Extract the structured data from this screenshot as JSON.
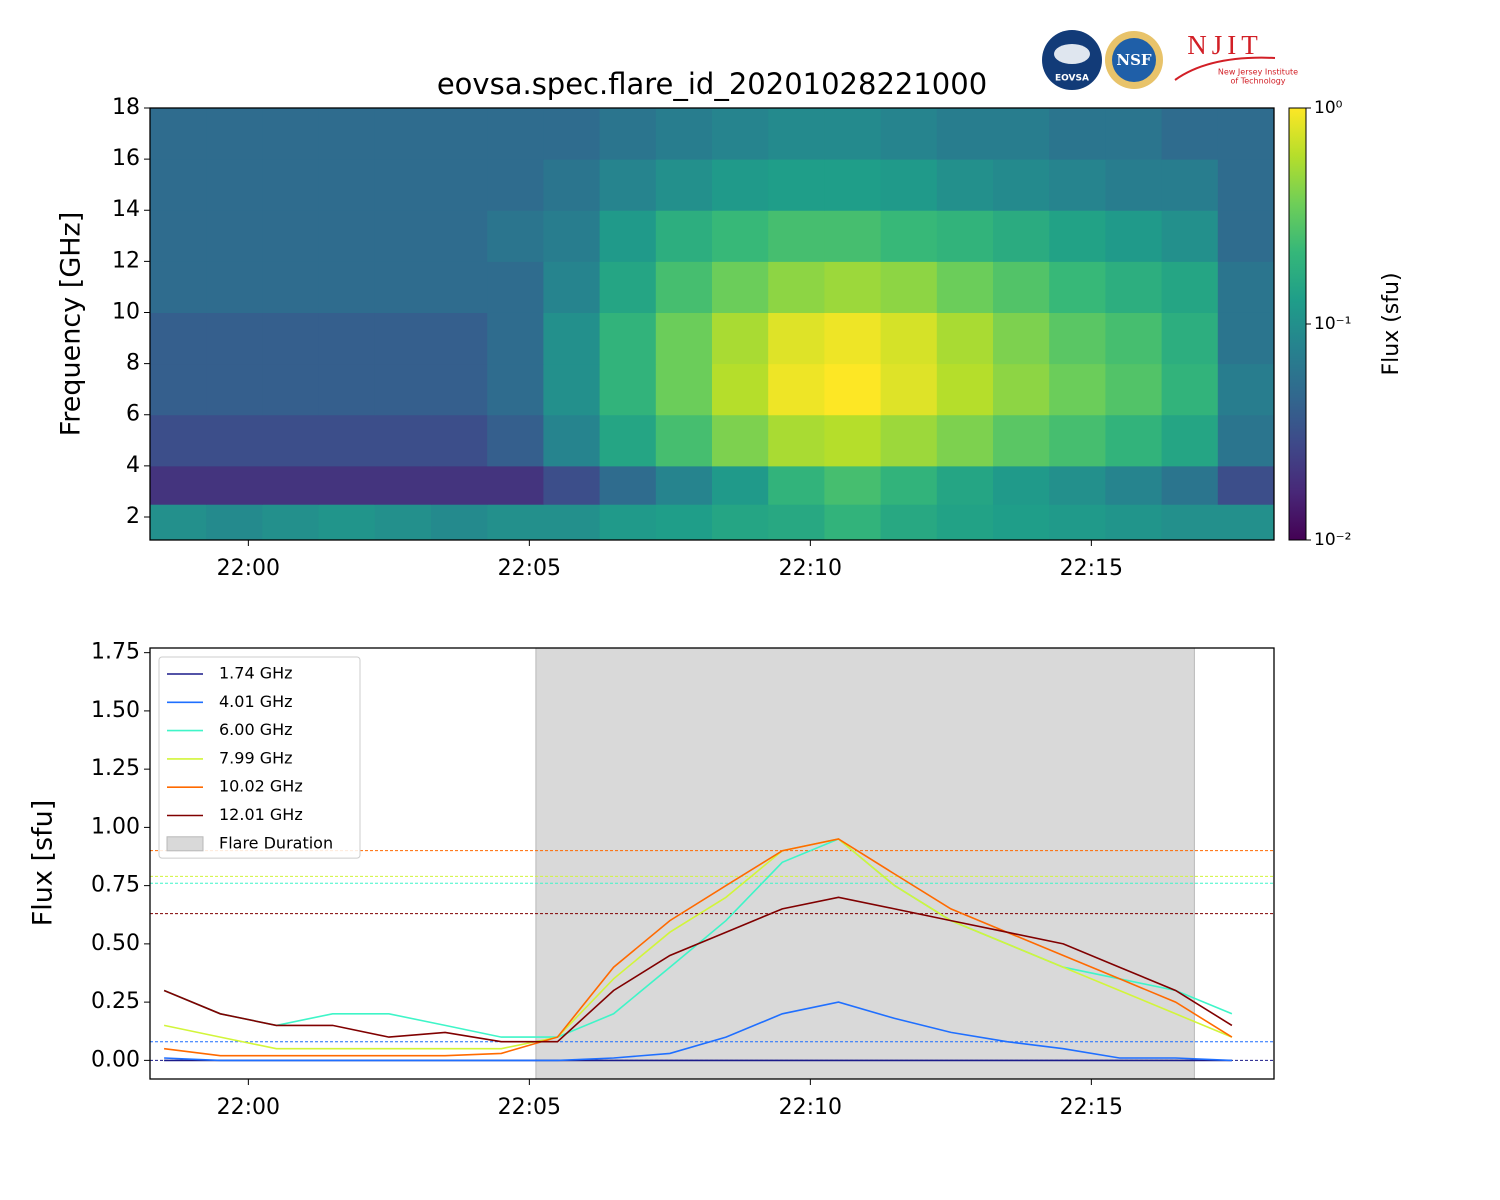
{
  "logos": [
    "EOVSA",
    "NSF",
    "NJIT",
    "New Jersey Institute",
    "of Technology"
  ],
  "chart_data": [
    {
      "type": "heatmap",
      "title": "eovsa.spec.flare_id_20201028221000",
      "ylabel": "Frequency [GHz]",
      "xlim": [
        "21:58:15",
        "22:18:15"
      ],
      "xticks": [
        "22:00",
        "22:05",
        "22:10",
        "22:15"
      ],
      "ylim": [
        1.1,
        18
      ],
      "yticks": [
        2,
        4,
        6,
        8,
        10,
        12,
        14,
        16,
        18
      ],
      "x": [
        "21:58:15",
        "21:59:15",
        "22:00:15",
        "22:01:15",
        "22:02:15",
        "22:03:15",
        "22:04:15",
        "22:05:15",
        "22:06:15",
        "22:07:15",
        "22:08:15",
        "22:09:15",
        "22:10:15",
        "22:11:15",
        "22:12:15",
        "22:13:15",
        "22:14:15",
        "22:15:15",
        "22:16:15",
        "22:17:15",
        "22:18:15"
      ],
      "y": [
        1.1,
        2.5,
        4,
        6,
        8,
        10,
        12,
        14,
        16,
        18
      ],
      "z": [
        [
          0.1,
          0.09,
          0.1,
          0.11,
          0.1,
          0.09,
          0.1,
          0.1,
          0.12,
          0.13,
          0.15,
          0.16,
          0.2,
          0.16,
          0.14,
          0.13,
          0.12,
          0.11,
          0.1,
          0.1
        ],
        [
          0.02,
          0.02,
          0.02,
          0.02,
          0.02,
          0.02,
          0.02,
          0.03,
          0.05,
          0.08,
          0.12,
          0.2,
          0.25,
          0.2,
          0.15,
          0.12,
          0.1,
          0.08,
          0.06,
          0.03
        ],
        [
          0.03,
          0.03,
          0.03,
          0.03,
          0.03,
          0.03,
          0.04,
          0.08,
          0.15,
          0.25,
          0.4,
          0.55,
          0.6,
          0.5,
          0.4,
          0.3,
          0.25,
          0.2,
          0.15,
          0.06
        ],
        [
          0.04,
          0.04,
          0.04,
          0.04,
          0.04,
          0.04,
          0.05,
          0.1,
          0.2,
          0.35,
          0.6,
          0.9,
          1,
          0.8,
          0.6,
          0.45,
          0.35,
          0.28,
          0.2,
          0.07
        ],
        [
          0.04,
          0.04,
          0.04,
          0.04,
          0.04,
          0.04,
          0.05,
          0.1,
          0.2,
          0.35,
          0.55,
          0.8,
          0.9,
          0.75,
          0.55,
          0.4,
          0.3,
          0.25,
          0.18,
          0.06
        ],
        [
          0.05,
          0.05,
          0.05,
          0.05,
          0.05,
          0.05,
          0.05,
          0.08,
          0.15,
          0.25,
          0.35,
          0.45,
          0.5,
          0.45,
          0.35,
          0.28,
          0.22,
          0.18,
          0.15,
          0.06
        ],
        [
          0.05,
          0.05,
          0.05,
          0.05,
          0.05,
          0.05,
          0.06,
          0.07,
          0.12,
          0.18,
          0.22,
          0.25,
          0.25,
          0.22,
          0.2,
          0.17,
          0.14,
          0.12,
          0.1,
          0.05
        ],
        [
          0.05,
          0.05,
          0.05,
          0.05,
          0.05,
          0.05,
          0.05,
          0.06,
          0.08,
          0.1,
          0.12,
          0.13,
          0.13,
          0.12,
          0.1,
          0.09,
          0.08,
          0.07,
          0.07,
          0.05
        ],
        [
          0.05,
          0.05,
          0.05,
          0.05,
          0.05,
          0.05,
          0.05,
          0.05,
          0.06,
          0.07,
          0.08,
          0.09,
          0.09,
          0.08,
          0.07,
          0.07,
          0.06,
          0.06,
          0.05,
          0.05
        ]
      ],
      "colorbar": {
        "label": "Flux  (sfu)",
        "log": true,
        "lim": [
          0.01,
          1
        ],
        "ticks": [
          {
            "value": 1,
            "label": "10⁰"
          },
          {
            "value": 0.1,
            "label": "10⁻¹"
          },
          {
            "value": 0.01,
            "label": "10⁻²"
          }
        ]
      }
    },
    {
      "type": "line",
      "ylabel": "Flux [sfu]",
      "xlim": [
        "21:58:15",
        "22:18:15"
      ],
      "xticks": [
        "22:00",
        "22:05",
        "22:10",
        "22:15"
      ],
      "ylim": [
        -0.08,
        1.77
      ],
      "yticks": [
        {
          "value": 0,
          "label": "0.00"
        },
        {
          "value": 0.25,
          "label": "0.25"
        },
        {
          "value": 0.5,
          "label": "0.50"
        },
        {
          "value": 0.75,
          "label": "0.75"
        },
        {
          "value": 1,
          "label": "1.00"
        },
        {
          "value": 1.25,
          "label": "1.25"
        },
        {
          "value": 1.5,
          "label": "1.50"
        },
        {
          "value": 1.75,
          "label": "1.75"
        }
      ],
      "legend": "upper left",
      "x": [
        "21:58:30",
        "21:59:30",
        "22:00:30",
        "22:01:30",
        "22:02:30",
        "22:03:30",
        "22:04:30",
        "22:05:30",
        "22:06:30",
        "22:07:30",
        "22:08:30",
        "22:09:30",
        "22:10:30",
        "22:11:30",
        "22:12:30",
        "22:13:30",
        "22:14:30",
        "22:15:30",
        "22:16:30",
        "22:17:30"
      ],
      "series": [
        {
          "name": "1.74 GHz",
          "color": "#1a1a8a",
          "threshold": 0,
          "values": [
            0,
            0,
            0,
            0,
            0,
            0,
            0,
            0,
            0,
            0,
            0,
            0,
            0,
            0,
            0,
            0,
            0,
            0,
            0,
            0
          ]
        },
        {
          "name": "4.01 GHz",
          "color": "#1f6fff",
          "threshold": 0.08,
          "values": [
            0.01,
            0,
            0,
            0,
            0,
            0,
            0,
            0,
            0.01,
            0.03,
            0.1,
            0.2,
            0.25,
            0.18,
            0.12,
            0.08,
            0.05,
            0.01,
            0.01,
            0
          ]
        },
        {
          "name": "6.00 GHz",
          "color": "#3ff5c8",
          "threshold": 0.76,
          "values": [
            0.3,
            0.2,
            0.15,
            0.2,
            0.2,
            0.15,
            0.1,
            0.1,
            0.2,
            0.4,
            0.6,
            0.85,
            0.95,
            0.75,
            0.6,
            0.5,
            0.4,
            0.35,
            0.3,
            0.2
          ]
        },
        {
          "name": "7.99 GHz",
          "color": "#d2f53a",
          "threshold": 0.79,
          "values": [
            0.15,
            0.1,
            0.05,
            0.05,
            0.05,
            0.05,
            0.05,
            0.1,
            0.35,
            0.55,
            0.7,
            0.9,
            0.95,
            0.75,
            0.6,
            0.5,
            0.4,
            0.3,
            0.2,
            0.1
          ]
        },
        {
          "name": "10.02 GHz",
          "color": "#ff6a00",
          "threshold": 0.9,
          "values": [
            0.05,
            0.02,
            0.02,
            0.02,
            0.02,
            0.02,
            0.03,
            0.1,
            0.4,
            0.6,
            0.75,
            0.9,
            0.95,
            0.8,
            0.65,
            0.55,
            0.45,
            0.35,
            0.25,
            0.1
          ]
        },
        {
          "name": "12.01 GHz",
          "color": "#800000",
          "threshold": 0.63,
          "values": [
            0.3,
            0.2,
            0.15,
            0.15,
            0.1,
            0.12,
            0.08,
            0.08,
            0.3,
            0.45,
            0.55,
            0.65,
            0.7,
            0.65,
            0.6,
            0.55,
            0.5,
            0.4,
            0.3,
            0.15
          ]
        }
      ],
      "span": {
        "name": "Flare Duration",
        "start": "22:05:07",
        "end": "22:16:50",
        "color": "#d9d9d9"
      }
    }
  ]
}
